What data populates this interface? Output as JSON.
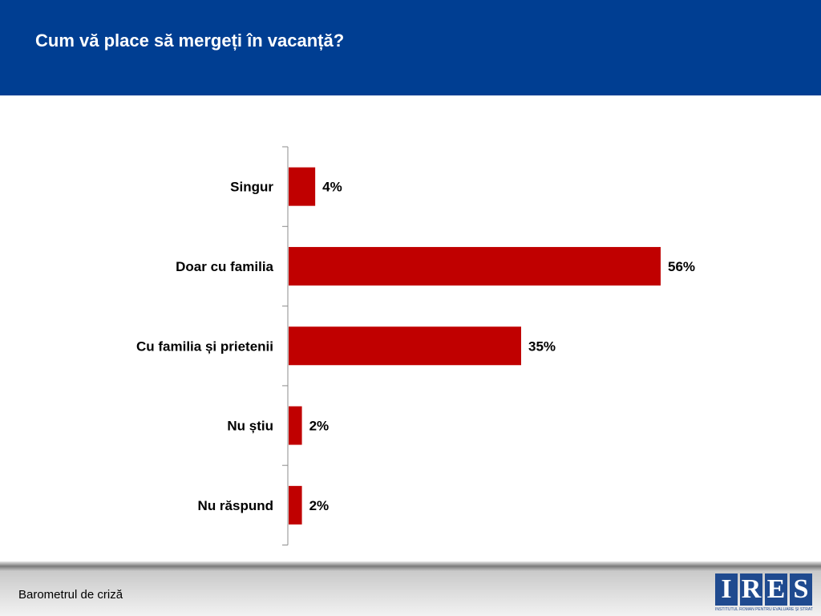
{
  "header": {
    "title": "Cum vă place să mergeți în vacanță?"
  },
  "chart_data": {
    "type": "bar",
    "orientation": "horizontal",
    "categories": [
      "Singur",
      "Doar cu familia",
      "Cu familia și prietenii",
      "Nu știu",
      "Nu răspund"
    ],
    "values": [
      4,
      56,
      35,
      2,
      2
    ],
    "value_labels": [
      "4%",
      "56%",
      "35%",
      "2%",
      "2%"
    ],
    "title": "",
    "xlabel": "",
    "ylabel": "",
    "xlim": [
      0,
      60
    ],
    "grid": false,
    "legend": "none",
    "bar_color": "#c00000"
  },
  "footer": {
    "text": "Barometrul de criză",
    "logo": {
      "letters": [
        "I",
        "R",
        "E",
        "S"
      ],
      "subtitle": "INSTITUTUL ROMÂN PENTRU EVALUARE ȘI STRATEGIE",
      "color": "#1f4a8f"
    }
  },
  "colors": {
    "header_bg": "#003e92",
    "bar": "#c00000"
  }
}
